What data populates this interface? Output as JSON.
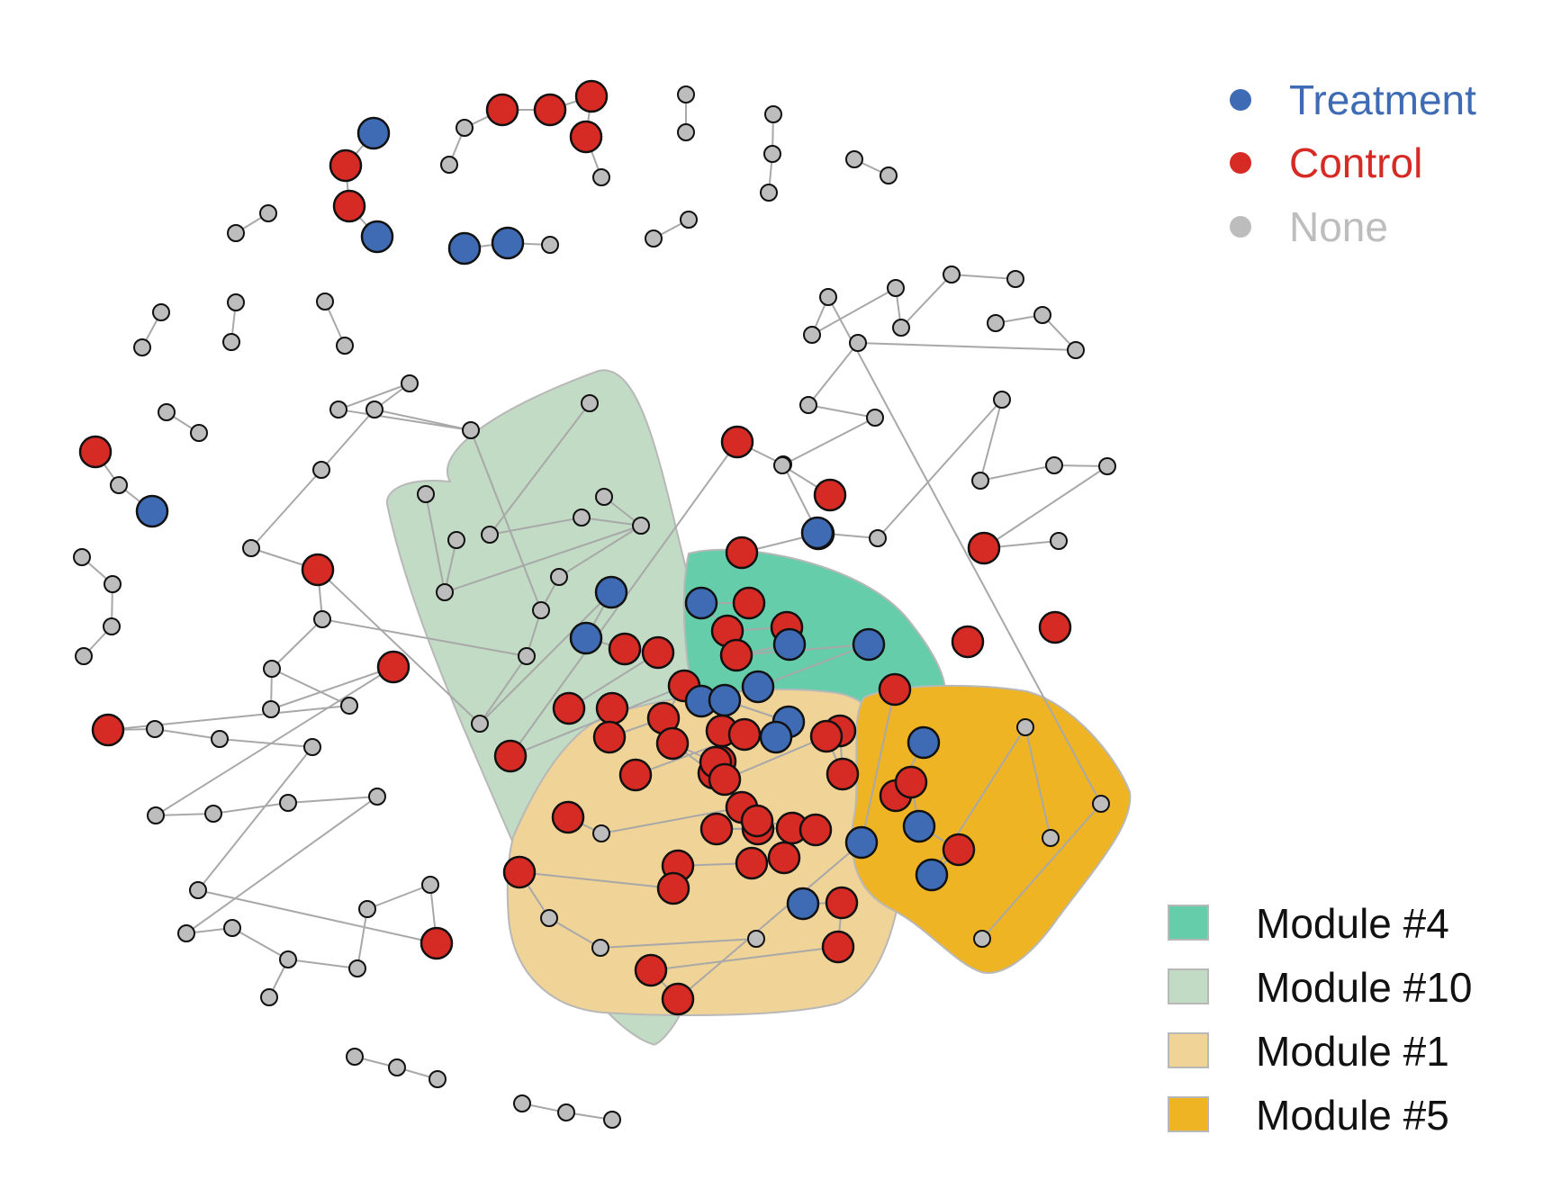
{
  "figure": {
    "type": "network",
    "description_text": ""
  },
  "legend_groups": [
    {
      "key": "treatment",
      "label": "Treatment",
      "color": "#3E6BB4"
    },
    {
      "key": "control",
      "label": "Control",
      "color": "#D62A24"
    },
    {
      "key": "none",
      "label": "None",
      "color": "#BDBDBD"
    }
  ],
  "legend_modules": [
    {
      "key": "m4",
      "label": "Module #4",
      "color": "#66CDAA"
    },
    {
      "key": "m10",
      "label": "Module #10",
      "color": "#C2DBC4"
    },
    {
      "key": "m1",
      "label": "Module #1",
      "color": "#F0D397"
    },
    {
      "key": "m5",
      "label": "Module #5",
      "color": "#EFB423"
    }
  ],
  "colors": {
    "edge": "#A8A8A8",
    "node_stroke": "#111111",
    "hull_stroke": "#B8B8B8"
  }
}
